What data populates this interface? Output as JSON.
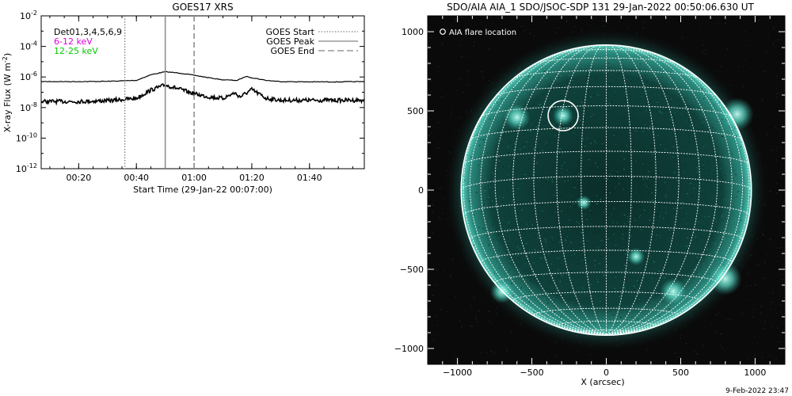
{
  "goes_panel": {
    "title": "GOES17 XRS",
    "xlabel": "Start Time (29-Jan-22 00:07:00)",
    "ylabel": "X-ray Flux (W m",
    "ylabel_sup": "-2",
    "ylabel_close": ")",
    "legend_left": [
      {
        "text": "Det01,3,4,5,6,9",
        "color": "#000000"
      },
      {
        "text": "6-12 keV",
        "color": "#e000e0"
      },
      {
        "text": "12-25 keV",
        "color": "#00cc00"
      }
    ],
    "legend_right": [
      {
        "text": "GOES Start",
        "style": "dotted"
      },
      {
        "text": "GOES Peak",
        "style": "solid"
      },
      {
        "text": "GOES End",
        "style": "dashed"
      }
    ],
    "y_ticks": [
      {
        "base": "10",
        "exp": "-2"
      },
      {
        "base": "10",
        "exp": "-4"
      },
      {
        "base": "10",
        "exp": "-6"
      },
      {
        "base": "10",
        "exp": "-8"
      },
      {
        "base": "10",
        "exp": "-10"
      },
      {
        "base": "10",
        "exp": "-12"
      }
    ],
    "x_ticks": [
      "00:20",
      "00:40",
      "01:00",
      "01:20",
      "01:40"
    ]
  },
  "aia_panel": {
    "title": "SDO/AIA AIA_1 SDO/JSOC-SDP 131 29-Jan-2022 00:50:06.630 UT",
    "legend": "AIA flare location",
    "xlabel": "X (arcsec)",
    "x_ticks": [
      "−1000",
      "−500",
      "0",
      "500",
      "1000"
    ],
    "y_ticks": [
      "1000",
      "500",
      "0",
      "−500",
      "−1000"
    ],
    "colors": {
      "disk": "#0c3a35",
      "bright": "#5fe0cc",
      "grid": "#ffffff",
      "background": "#0a0a0a"
    }
  },
  "footer": {
    "timestamp": "9-Feb-2022 23:47"
  },
  "chart_data": [
    {
      "type": "line",
      "title": "GOES17 XRS",
      "xlabel": "Start Time (29-Jan-22 00:07:00)",
      "ylabel": "X-ray Flux (W m^-2)",
      "yscale": "log",
      "ylim": [
        1e-12,
        0.01
      ],
      "xlim_minutes_after_start": [
        0,
        112
      ],
      "grid": false,
      "legend_position": "top-right",
      "markers": {
        "goes_start": "00:36",
        "goes_peak": "00:50",
        "goes_end": "01:00"
      },
      "series": [
        {
          "name": "upper channel",
          "x": [
            "00:07",
            "00:20",
            "00:30",
            "00:40",
            "00:45",
            "00:50",
            "00:55",
            "01:00",
            "01:05",
            "01:10",
            "01:15",
            "01:18",
            "01:20",
            "01:25",
            "01:30",
            "01:40",
            "01:50",
            "01:59"
          ],
          "values": [
            5e-07,
            5e-07,
            5.2e-07,
            6e-07,
            1.4e-06,
            2.2e-06,
            1.8e-06,
            1.3e-06,
            9e-07,
            6.5e-07,
            6e-07,
            1.1e-06,
            9e-07,
            6e-07,
            5e-07,
            4.8e-07,
            4.8e-07,
            5e-07
          ]
        },
        {
          "name": "lower channel",
          "x": [
            "00:07",
            "00:20",
            "00:30",
            "00:40",
            "00:45",
            "00:50",
            "00:55",
            "01:00",
            "01:05",
            "01:10",
            "01:14",
            "01:16",
            "01:20",
            "01:25",
            "01:30",
            "01:40",
            "01:50",
            "01:59"
          ],
          "values": [
            2.5e-08,
            2.5e-08,
            2.8e-08,
            4e-08,
            1.4e-07,
            3e-07,
            1.6e-07,
            8e-08,
            5e-08,
            4e-08,
            9e-08,
            5e-08,
            1.5e-07,
            4e-08,
            3e-08,
            3e-08,
            3e-08,
            3e-08
          ]
        }
      ]
    },
    {
      "type": "scatter",
      "title": "SDO/AIA AIA_1 SDO/JSOC-SDP 131 29-Jan-2022 00:50:06.630 UT",
      "xlabel": "X (arcsec)",
      "ylabel": "",
      "xlim": [
        -1200,
        1200
      ],
      "ylim": [
        -1100,
        1100
      ],
      "flare_location": {
        "x": -290,
        "y": 470,
        "label": "AIA flare location"
      },
      "solar_radius_arcsec": 975,
      "grid": true
    }
  ]
}
